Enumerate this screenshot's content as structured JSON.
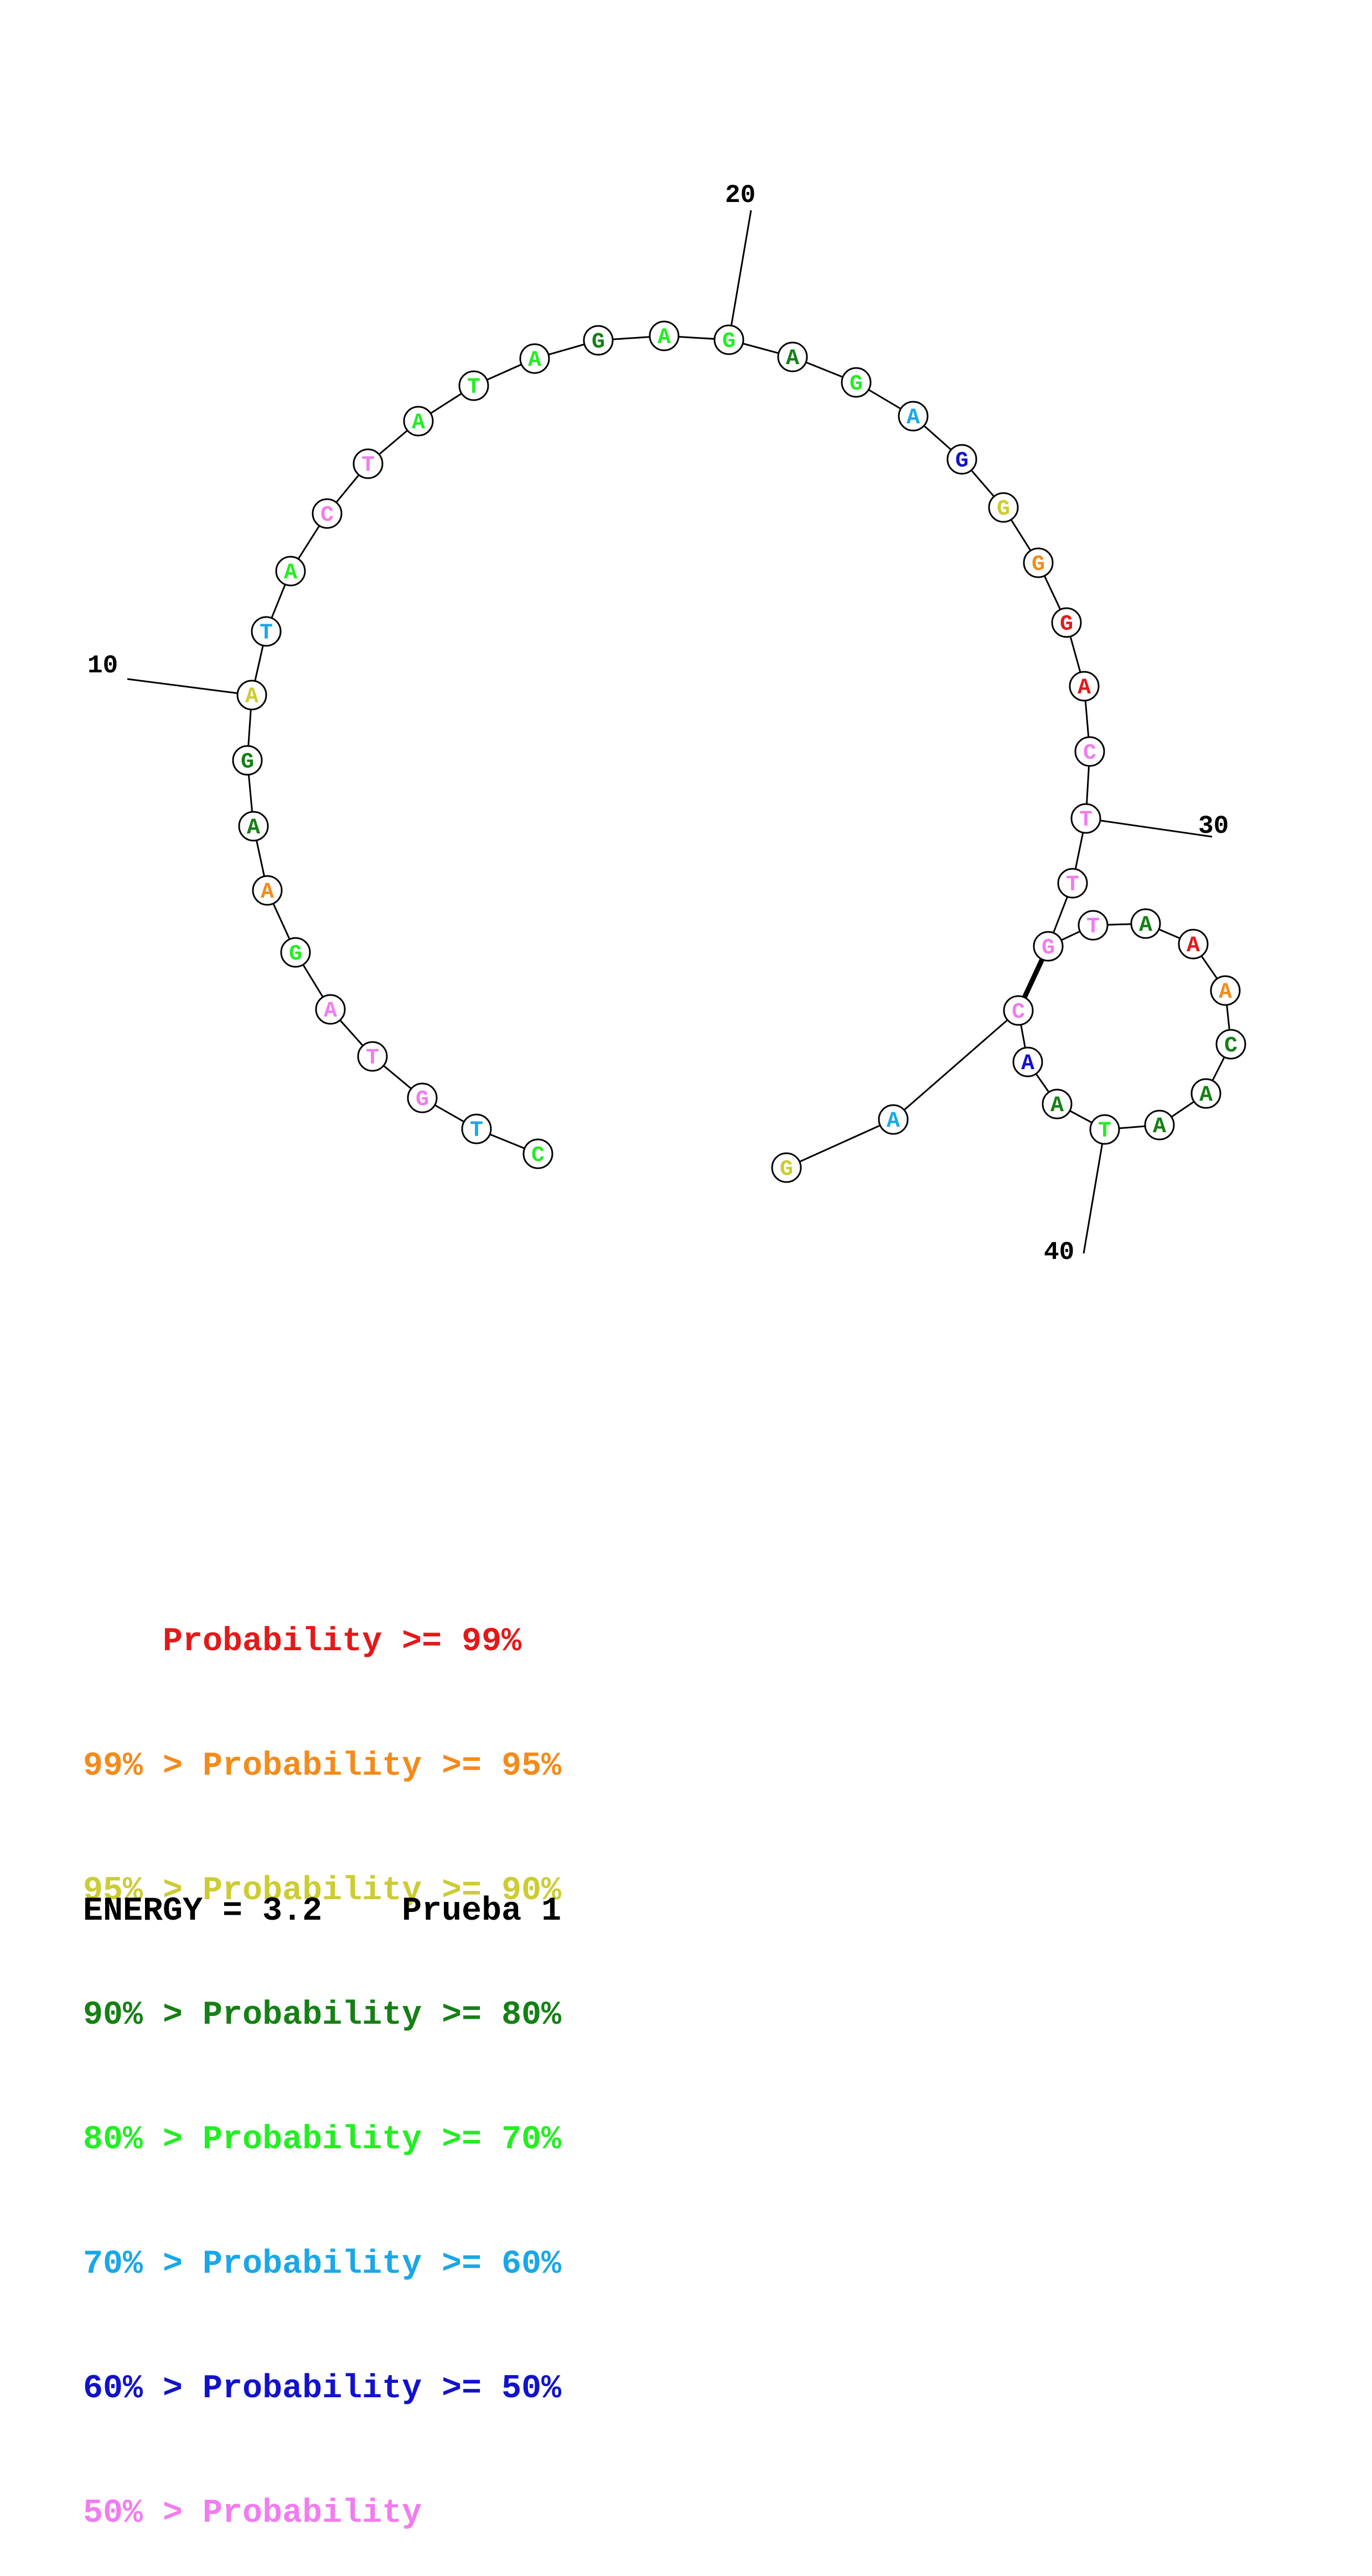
{
  "nucleotides": [
    {
      "n": 1,
      "base": "C",
      "color": "#22ee22"
    },
    {
      "n": 2,
      "base": "T",
      "color": "#1aa7e8"
    },
    {
      "n": 3,
      "base": "G",
      "color": "#f17cef"
    },
    {
      "n": 4,
      "base": "T",
      "color": "#f17cef"
    },
    {
      "n": 5,
      "base": "A",
      "color": "#f17cef"
    },
    {
      "n": 6,
      "base": "G",
      "color": "#22ee22"
    },
    {
      "n": 7,
      "base": "A",
      "color": "#f38b1c"
    },
    {
      "n": 8,
      "base": "A",
      "color": "#158015"
    },
    {
      "n": 9,
      "base": "G",
      "color": "#158015"
    },
    {
      "n": 10,
      "base": "A",
      "color": "#cccc33"
    },
    {
      "n": 11,
      "base": "T",
      "color": "#1aa7e8"
    },
    {
      "n": 12,
      "base": "A",
      "color": "#22ee22"
    },
    {
      "n": 13,
      "base": "C",
      "color": "#f17cef"
    },
    {
      "n": 14,
      "base": "T",
      "color": "#f17cef"
    },
    {
      "n": 15,
      "base": "A",
      "color": "#22ee22"
    },
    {
      "n": 16,
      "base": "T",
      "color": "#22ee22"
    },
    {
      "n": 17,
      "base": "A",
      "color": "#22ee22"
    },
    {
      "n": 18,
      "base": "G",
      "color": "#158015"
    },
    {
      "n": 19,
      "base": "A",
      "color": "#22ee22"
    },
    {
      "n": 20,
      "base": "G",
      "color": "#22ee22"
    },
    {
      "n": 21,
      "base": "A",
      "color": "#158015"
    },
    {
      "n": 22,
      "base": "G",
      "color": "#22ee22"
    },
    {
      "n": 23,
      "base": "A",
      "color": "#1aa7e8"
    },
    {
      "n": 24,
      "base": "G",
      "color": "#1212cc"
    },
    {
      "n": 25,
      "base": "G",
      "color": "#cccc33"
    },
    {
      "n": 26,
      "base": "G",
      "color": "#f38b1c"
    },
    {
      "n": 27,
      "base": "G",
      "color": "#e31919"
    },
    {
      "n": 28,
      "base": "A",
      "color": "#e31919"
    },
    {
      "n": 29,
      "base": "C",
      "color": "#f17cef"
    },
    {
      "n": 30,
      "base": "T",
      "color": "#f17cef"
    },
    {
      "n": 31,
      "base": "T",
      "color": "#f17cef"
    },
    {
      "n": 32,
      "base": "G",
      "color": "#f17cef"
    },
    {
      "n": 33,
      "base": "T",
      "color": "#f17cef"
    },
    {
      "n": 34,
      "base": "A",
      "color": "#158015"
    },
    {
      "n": 35,
      "base": "A",
      "color": "#e31919"
    },
    {
      "n": 36,
      "base": "A",
      "color": "#f38b1c"
    },
    {
      "n": 37,
      "base": "C",
      "color": "#158015"
    },
    {
      "n": 38,
      "base": "A",
      "color": "#158015"
    },
    {
      "n": 39,
      "base": "A",
      "color": "#158015"
    },
    {
      "n": 40,
      "base": "T",
      "color": "#22ee22"
    },
    {
      "n": 41,
      "base": "A",
      "color": "#158015"
    },
    {
      "n": 42,
      "base": "A",
      "color": "#1212cc"
    },
    {
      "n": 43,
      "base": "C",
      "color": "#f17cef"
    },
    {
      "n": 44,
      "base": "A",
      "color": "#1aa7e8"
    },
    {
      "n": 45,
      "base": "G",
      "color": "#cccc33"
    }
  ],
  "pairs": [
    [
      32,
      43
    ]
  ],
  "number_labels": [
    "10",
    "20",
    "30",
    "40"
  ],
  "legend": [
    {
      "prefix": "    ",
      "text": "Probability >= 99%",
      "color": "#e31919"
    },
    {
      "prefix": "99% > ",
      "text": "Probability >= 95%",
      "color": "#f38b1c"
    },
    {
      "prefix": "95% > ",
      "text": "Probability >= 90%",
      "color": "#cccc33"
    },
    {
      "prefix": "90% > ",
      "text": "Probability >= 80%",
      "color": "#158015"
    },
    {
      "prefix": "80% > ",
      "text": "Probability >= 70%",
      "color": "#22ee22"
    },
    {
      "prefix": "70% > ",
      "text": "Probability >= 60%",
      "color": "#1aa7e8"
    },
    {
      "prefix": "60% > ",
      "text": "Probability >= 50%",
      "color": "#1212cc"
    },
    {
      "prefix": "50% > ",
      "text": "Probability",
      "color": "#f17cef"
    }
  ],
  "footer": {
    "energy": "ENERGY = 3.2",
    "name": "Prueba 1"
  }
}
